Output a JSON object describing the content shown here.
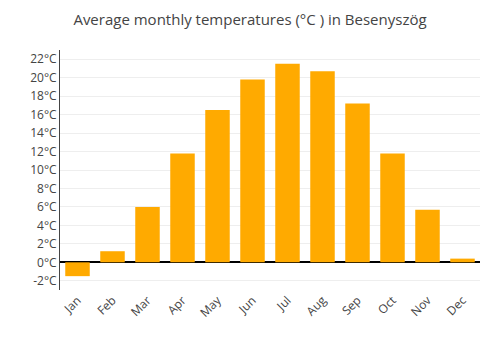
{
  "chart_data": {
    "type": "bar",
    "title": "Average monthly temperatures (°C ) in Besenyszög",
    "categories": [
      "Jan",
      "Feb",
      "Mar",
      "Apr",
      "May",
      "Jun",
      "Jul",
      "Aug",
      "Sep",
      "Oct",
      "Nov",
      "Dec"
    ],
    "values": [
      -1.5,
      1.2,
      6.0,
      11.8,
      16.5,
      19.8,
      21.5,
      20.7,
      17.2,
      11.8,
      5.7,
      0.4
    ],
    "color": "#FFAA00",
    "ylim": [
      -3,
      23
    ],
    "yticks": [
      {
        "value": -2,
        "label": "-2°C"
      },
      {
        "value": 0,
        "label": "0°C"
      },
      {
        "value": 2,
        "label": "2°C"
      },
      {
        "value": 4,
        "label": "4°C"
      },
      {
        "value": 6,
        "label": "6°C"
      },
      {
        "value": 8,
        "label": "8°C"
      },
      {
        "value": 10,
        "label": "10°C"
      },
      {
        "value": 12,
        "label": "12°C"
      },
      {
        "value": 14,
        "label": "14°C"
      },
      {
        "value": 16,
        "label": "16°C"
      },
      {
        "value": 18,
        "label": "18°C"
      },
      {
        "value": 20,
        "label": "20°C"
      },
      {
        "value": 22,
        "label": "22°C"
      }
    ],
    "grid": true
  }
}
